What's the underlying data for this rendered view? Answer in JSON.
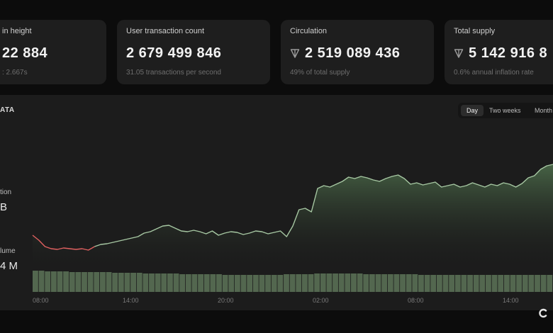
{
  "stats": [
    {
      "label": "in height",
      "value": "22 884",
      "sub": ": 2.667s"
    },
    {
      "label": "User transaction count",
      "value": "2 679 499 846",
      "sub": "31.05 transactions per second"
    },
    {
      "label": "Circulation",
      "value": "2 519 089 436",
      "sub": "49% of total supply",
      "icon": "ton-icon"
    },
    {
      "label": "Total supply",
      "value": "5 142 916 8",
      "sub": "0.6% annual inflation rate",
      "icon": "ton-icon"
    }
  ],
  "panel": {
    "title": "ATA",
    "left_labels": [
      {
        "label": "tion",
        "value": "B"
      },
      {
        "label": "lume",
        "value": "4 M"
      }
    ],
    "range_options": [
      "Day",
      "Two weeks",
      "Month"
    ],
    "active_range": "Day"
  },
  "chart_data": {
    "type": "area",
    "x_ticks": [
      "08:00",
      "14:00",
      "20:00",
      "02:00",
      "08:00",
      "14:00"
    ],
    "price_line": [
      52,
      45,
      36,
      33,
      32,
      34,
      33,
      32,
      33,
      31,
      36,
      39,
      40,
      42,
      44,
      46,
      48,
      50,
      55,
      57,
      61,
      65,
      66,
      62,
      58,
      57,
      59,
      57,
      54,
      58,
      52,
      55,
      57,
      56,
      53,
      55,
      58,
      57,
      54,
      56,
      58,
      50,
      65,
      88,
      90,
      85,
      118,
      122,
      120,
      124,
      128,
      134,
      132,
      135,
      133,
      130,
      128,
      132,
      135,
      137,
      132,
      124,
      126,
      123,
      125,
      127,
      120,
      122,
      124,
      120,
      122,
      126,
      123,
      120,
      124,
      122,
      126,
      124,
      120,
      125,
      133,
      136,
      145,
      150,
      152
    ],
    "price_line_down_until": 10,
    "volume_bars": [
      30,
      30,
      29,
      29,
      29,
      29,
      28,
      28,
      28,
      28,
      28,
      28,
      28,
      27,
      27,
      27,
      27,
      27,
      26,
      26,
      26,
      26,
      26,
      26,
      25,
      25,
      25,
      25,
      25,
      25,
      25,
      24,
      24,
      24,
      24,
      24,
      24,
      24,
      24,
      24,
      24,
      25,
      25,
      25,
      25,
      25,
      26,
      26,
      26,
      26,
      26,
      26,
      26,
      26,
      25,
      25,
      25,
      25,
      25,
      25,
      25,
      25,
      25,
      24,
      24,
      24,
      24,
      24,
      24,
      24,
      24,
      24,
      24,
      24,
      24,
      24,
      24,
      24,
      24,
      24,
      24,
      24,
      24,
      24,
      24
    ],
    "colors": {
      "line_up": "#a6c7a2",
      "line_down": "#e06060",
      "area_top": "#4c6b4a",
      "bar": "#53674f"
    }
  }
}
